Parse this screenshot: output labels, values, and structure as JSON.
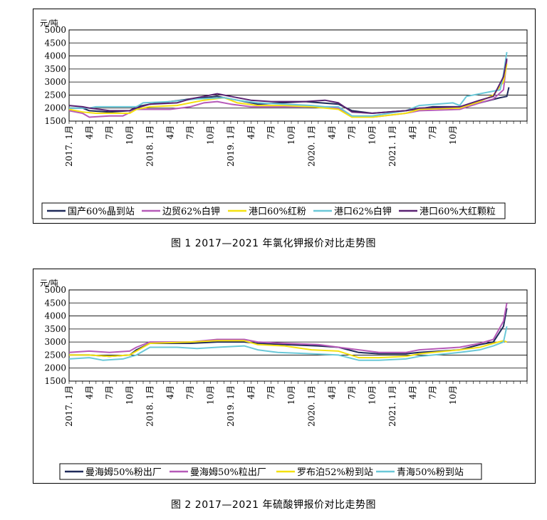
{
  "chart_data": [
    {
      "type": "line",
      "caption": "图 1  2017—2021 年氯化钾报价对比走势图",
      "ylabel": "元/吨",
      "ylim": [
        1500,
        5000
      ],
      "yticks": [
        1500,
        2000,
        2500,
        3000,
        3500,
        4000,
        4500,
        5000
      ],
      "x_tick_labels": [
        "2017. 1月",
        "4月",
        "7月",
        "10月",
        "2018. 1月",
        "4月",
        "7月",
        "10月",
        "2019. 1月",
        "4月",
        "7月",
        "10月",
        "2020. 1月",
        "4月",
        "7月",
        "10月",
        "2021. 1月",
        "4月",
        "7月",
        "10月"
      ],
      "legend": "bottom",
      "grid": "horizontal",
      "series": [
        {
          "name": "国产60%晶到站",
          "color": "#1f2a5a",
          "points": [
            [
              0,
              2000
            ],
            [
              2,
              2000
            ],
            [
              3,
              1900
            ],
            [
              6,
              1850
            ],
            [
              9,
              1900
            ],
            [
              10,
              2050
            ],
            [
              12,
              2150
            ],
            [
              18,
              2350
            ],
            [
              22,
              2450
            ],
            [
              25,
              2300
            ],
            [
              28,
              2150
            ],
            [
              35,
              2250
            ],
            [
              40,
              2150
            ],
            [
              42,
              1900
            ],
            [
              45,
              1800
            ],
            [
              50,
              1900
            ],
            [
              54,
              2050
            ],
            [
              58,
              2050
            ],
            [
              61,
              2200
            ],
            [
              64,
              2400
            ],
            [
              65,
              2450
            ],
            [
              65.3,
              2800
            ]
          ]
        },
        {
          "name": "边贸62%白钾",
          "color": "#b65ab8",
          "points": [
            [
              0,
              1900
            ],
            [
              2,
              1800
            ],
            [
              3,
              1650
            ],
            [
              6,
              1700
            ],
            [
              8,
              1700
            ],
            [
              10,
              1950
            ],
            [
              12,
              1950
            ],
            [
              15,
              1950
            ],
            [
              18,
              2050
            ],
            [
              20,
              2200
            ],
            [
              22,
              2250
            ],
            [
              24,
              2150
            ],
            [
              27,
              2050
            ],
            [
              30,
              2050
            ],
            [
              35,
              2050
            ],
            [
              40,
              2000
            ],
            [
              42,
              1700
            ],
            [
              45,
              1650
            ],
            [
              50,
              1800
            ],
            [
              52,
              1900
            ],
            [
              58,
              1950
            ],
            [
              61,
              2200
            ],
            [
              63,
              2350
            ],
            [
              64.5,
              2700
            ],
            [
              65,
              3850
            ]
          ]
        },
        {
          "name": "港口60%红粉",
          "color": "#f4e10f",
          "points": [
            [
              0,
              1950
            ],
            [
              2,
              1850
            ],
            [
              4,
              1800
            ],
            [
              6,
              1800
            ],
            [
              9,
              1800
            ],
            [
              10,
              1950
            ],
            [
              12,
              2050
            ],
            [
              16,
              2100
            ],
            [
              18,
              2200
            ],
            [
              20,
              2300
            ],
            [
              23,
              2400
            ],
            [
              25,
              2200
            ],
            [
              28,
              2100
            ],
            [
              32,
              2100
            ],
            [
              36,
              2050
            ],
            [
              38,
              2000
            ],
            [
              40,
              1950
            ],
            [
              42,
              1650
            ],
            [
              45,
              1650
            ],
            [
              50,
              1800
            ],
            [
              52,
              1950
            ],
            [
              58,
              2000
            ],
            [
              61,
              2250
            ],
            [
              63,
              2500
            ],
            [
              64.5,
              3000
            ],
            [
              65,
              3700
            ]
          ]
        },
        {
          "name": "港口62%白钾",
          "color": "#6ac8d8",
          "points": [
            [
              0,
              2000
            ],
            [
              3,
              2000
            ],
            [
              4,
              2050
            ],
            [
              8,
              2050
            ],
            [
              10,
              2050
            ],
            [
              11,
              2200
            ],
            [
              15,
              2250
            ],
            [
              17,
              2300
            ],
            [
              19,
              2350
            ],
            [
              23,
              2400
            ],
            [
              25,
              2300
            ],
            [
              28,
              2200
            ],
            [
              32,
              2150
            ],
            [
              36,
              2100
            ],
            [
              38,
              2050
            ],
            [
              40,
              2050
            ],
            [
              42,
              1700
            ],
            [
              45,
              1700
            ],
            [
              50,
              1900
            ],
            [
              52,
              2100
            ],
            [
              57,
              2200
            ],
            [
              58,
              2100
            ],
            [
              59,
              2450
            ],
            [
              61,
              2550
            ],
            [
              64,
              2700
            ],
            [
              64.5,
              3300
            ],
            [
              65,
              4150
            ]
          ]
        },
        {
          "name": "港口60%大红颗粒",
          "color": "#5a2272",
          "points": [
            [
              0,
              2100
            ],
            [
              2,
              2050
            ],
            [
              3,
              2000
            ],
            [
              6,
              1900
            ],
            [
              9,
              1900
            ],
            [
              10,
              2000
            ],
            [
              12,
              2150
            ],
            [
              16,
              2200
            ],
            [
              18,
              2350
            ],
            [
              20,
              2450
            ],
            [
              22,
              2550
            ],
            [
              24,
              2450
            ],
            [
              27,
              2300
            ],
            [
              30,
              2250
            ],
            [
              35,
              2250
            ],
            [
              38,
              2300
            ],
            [
              40,
              2200
            ],
            [
              42,
              1850
            ],
            [
              45,
              1800
            ],
            [
              50,
              1900
            ],
            [
              52,
              2000
            ],
            [
              58,
              2050
            ],
            [
              61,
              2300
            ],
            [
              63,
              2450
            ],
            [
              64.5,
              3200
            ],
            [
              65,
              3900
            ]
          ]
        }
      ]
    },
    {
      "type": "line",
      "caption": "图 2  2017—2021 年硫酸钾报价对比走势图",
      "ylabel": "元/吨",
      "ylim": [
        1500,
        5000
      ],
      "yticks": [
        1500,
        2000,
        2500,
        3000,
        3500,
        4000,
        4500,
        5000
      ],
      "x_tick_labels": [
        "2017. 1月",
        "4月",
        "7月",
        "10月",
        "2018. 1月",
        "4月",
        "7月",
        "10月",
        "2019. 1月",
        "4月",
        "7月",
        "10月",
        "2020. 1月",
        "4月",
        "7月",
        "10月",
        "2021. 1月",
        "4月",
        "7月",
        "10月"
      ],
      "legend": "bottom",
      "grid": "horizontal",
      "series": [
        {
          "name": "曼海姆50%粉出厂",
          "color": "#1f2a5a",
          "points": [
            [
              0,
              2500
            ],
            [
              3,
              2500
            ],
            [
              6,
              2450
            ],
            [
              9,
              2500
            ],
            [
              10,
              2700
            ],
            [
              12,
              2950
            ],
            [
              18,
              2950
            ],
            [
              22,
              3000
            ],
            [
              26,
              3000
            ],
            [
              28,
              2950
            ],
            [
              32,
              2900
            ],
            [
              37,
              2850
            ],
            [
              40,
              2800
            ],
            [
              43,
              2600
            ],
            [
              46,
              2550
            ],
            [
              50,
              2550
            ],
            [
              52,
              2600
            ],
            [
              58,
              2700
            ],
            [
              61,
              2900
            ],
            [
              63,
              3000
            ],
            [
              64.5,
              3600
            ],
            [
              65,
              4300
            ]
          ]
        },
        {
          "name": "曼海姆50%粒出厂",
          "color": "#b65ab8",
          "points": [
            [
              0,
              2600
            ],
            [
              3,
              2650
            ],
            [
              6,
              2600
            ],
            [
              9,
              2650
            ],
            [
              10,
              2800
            ],
            [
              12,
              3000
            ],
            [
              18,
              3000
            ],
            [
              22,
              3100
            ],
            [
              26,
              3100
            ],
            [
              28,
              3000
            ],
            [
              32,
              2950
            ],
            [
              37,
              2900
            ],
            [
              40,
              2800
            ],
            [
              43,
              2700
            ],
            [
              46,
              2600
            ],
            [
              50,
              2600
            ],
            [
              52,
              2700
            ],
            [
              58,
              2800
            ],
            [
              61,
              2950
            ],
            [
              63,
              3100
            ],
            [
              64.5,
              3800
            ],
            [
              65,
              4500
            ]
          ]
        },
        {
          "name": "罗布泊52%粉到站",
          "color": "#f4e10f",
          "points": [
            [
              0,
              2500
            ],
            [
              3,
              2500
            ],
            [
              6,
              2450
            ],
            [
              9,
              2500
            ],
            [
              10,
              2650
            ],
            [
              12,
              2950
            ],
            [
              18,
              3000
            ],
            [
              22,
              3050
            ],
            [
              26,
              3050
            ],
            [
              28,
              2900
            ],
            [
              32,
              2850
            ],
            [
              36,
              2700
            ],
            [
              40,
              2650
            ],
            [
              43,
              2400
            ],
            [
              46,
              2400
            ],
            [
              50,
              2450
            ],
            [
              52,
              2550
            ],
            [
              58,
              2700
            ],
            [
              61,
              2800
            ],
            [
              63,
              2950
            ],
            [
              64.5,
              3050
            ],
            [
              65,
              3000
            ]
          ]
        },
        {
          "name": "青海50%粉到站",
          "color": "#6ac8d8",
          "points": [
            [
              0,
              2350
            ],
            [
              3,
              2400
            ],
            [
              5,
              2300
            ],
            [
              8,
              2350
            ],
            [
              10,
              2500
            ],
            [
              12,
              2800
            ],
            [
              16,
              2800
            ],
            [
              19,
              2750
            ],
            [
              22,
              2800
            ],
            [
              26,
              2850
            ],
            [
              28,
              2700
            ],
            [
              31,
              2600
            ],
            [
              36,
              2550
            ],
            [
              40,
              2500
            ],
            [
              43,
              2300
            ],
            [
              46,
              2300
            ],
            [
              50,
              2350
            ],
            [
              52,
              2450
            ],
            [
              58,
              2600
            ],
            [
              61,
              2700
            ],
            [
              63,
              2850
            ],
            [
              64.5,
              3000
            ],
            [
              65,
              3600
            ]
          ]
        }
      ]
    }
  ]
}
